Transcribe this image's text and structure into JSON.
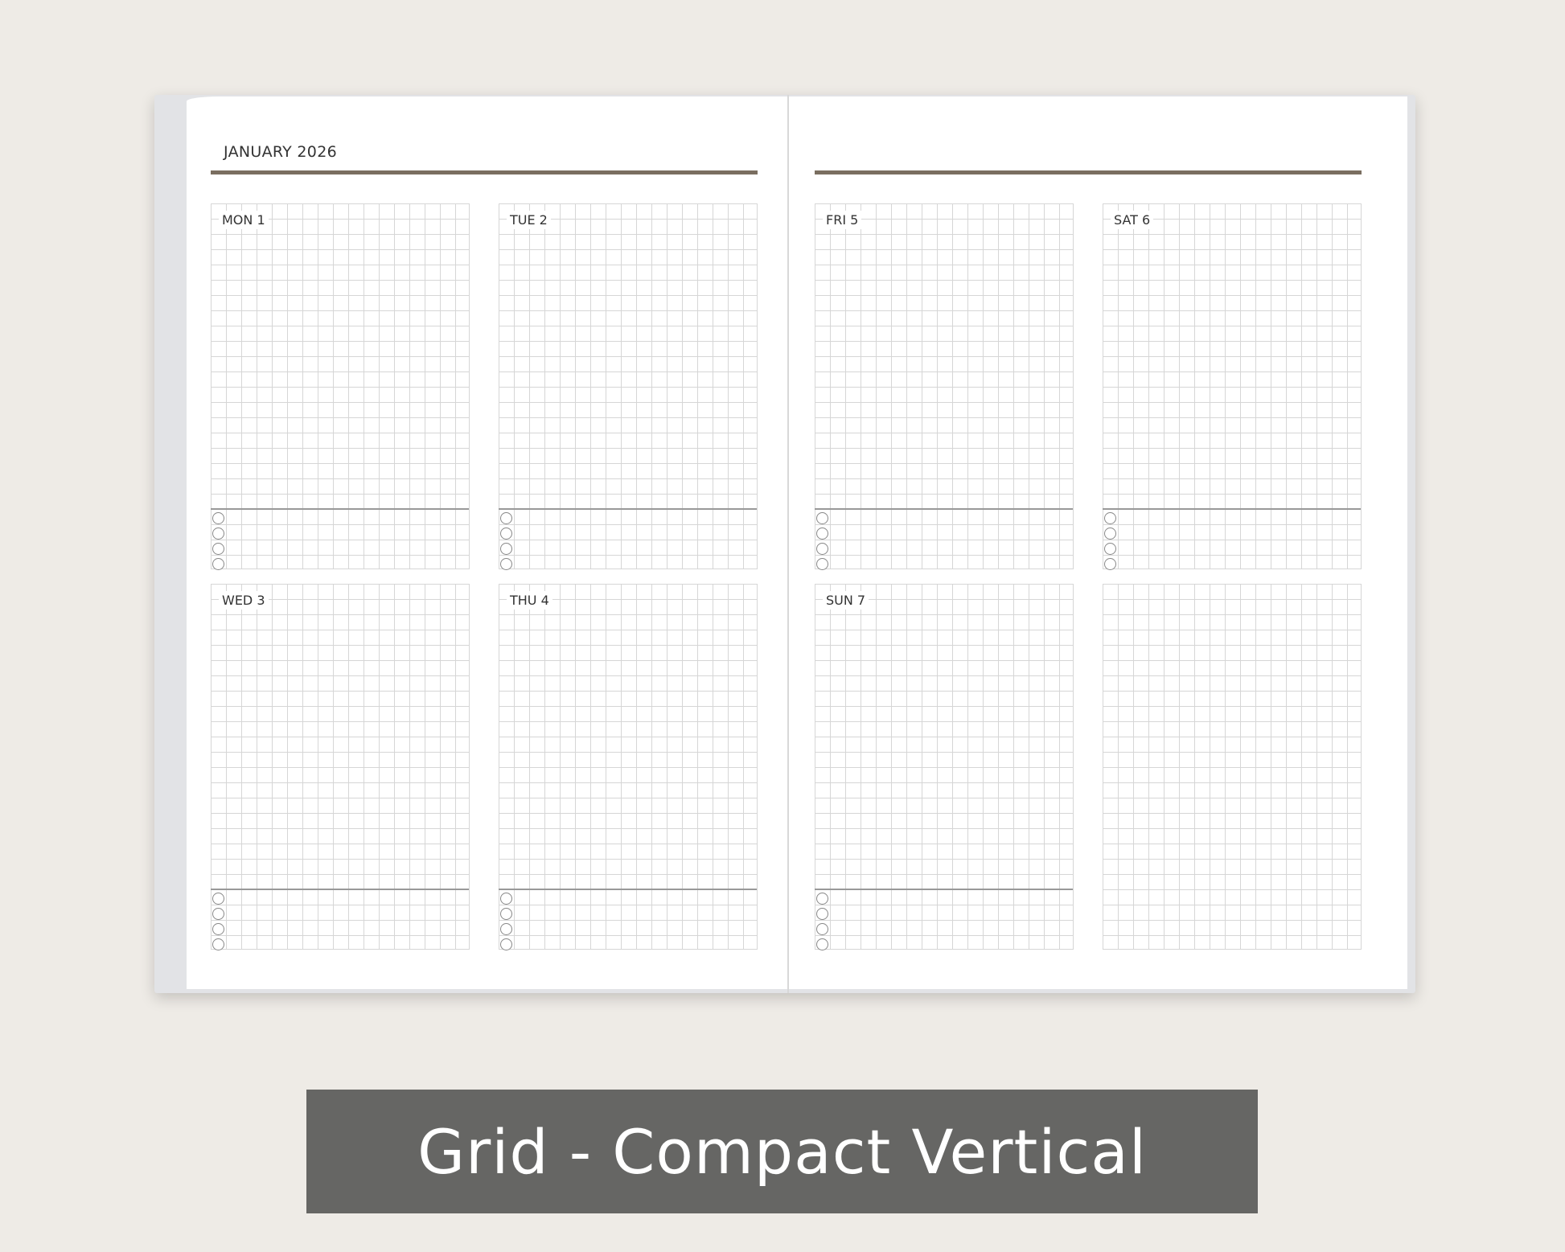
{
  "planner": {
    "month_header": "JANUARY 2026",
    "days": [
      {
        "label": "MON  1"
      },
      {
        "label": "TUE  2"
      },
      {
        "label": "WED  3"
      },
      {
        "label": "THU  4"
      },
      {
        "label": "FRI 5"
      },
      {
        "label": "SAT 6"
      },
      {
        "label": "SUN 7"
      },
      {
        "label": ""
      }
    ]
  },
  "caption": "Grid - Compact Vertical",
  "colors": {
    "background": "#eeebe6",
    "rule": "#7a6e60",
    "caption_bg": "#666664"
  }
}
